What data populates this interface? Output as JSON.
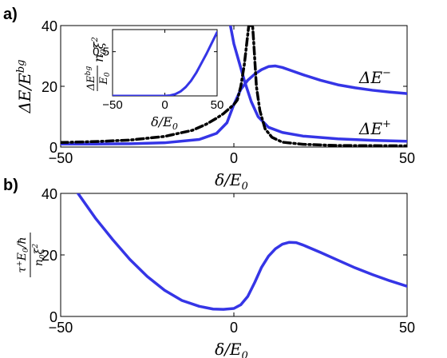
{
  "chart_data": [
    {
      "panel_label": "a)",
      "type": "line",
      "xlabel": "δ/E₀",
      "ylabel": "ΔE/E^bg",
      "xlim": [
        -50,
        50
      ],
      "ylim": [
        0,
        40
      ],
      "xticks": [
        "−50",
        "0",
        "50"
      ],
      "yticks": [
        "0",
        "20",
        "40"
      ],
      "series": [
        {
          "name": "ΔE⁻",
          "style": "solid",
          "color": "#3535E6",
          "points": [
            [
              -50,
              1.0
            ],
            [
              -40,
              1.0
            ],
            [
              -30,
              1.1
            ],
            [
              -20,
              1.4
            ],
            [
              -10,
              2.5
            ],
            [
              -5,
              4.5
            ],
            [
              -2,
              8
            ],
            [
              0,
              14
            ],
            [
              2,
              19
            ],
            [
              4,
              22
            ],
            [
              6,
              24
            ],
            [
              8,
              25.5
            ],
            [
              10,
              26.5
            ],
            [
              12,
              26.7
            ],
            [
              14,
              26.2
            ],
            [
              17,
              25
            ],
            [
              20,
              23.8
            ],
            [
              25,
              22
            ],
            [
              30,
              20.5
            ],
            [
              35,
              19.5
            ],
            [
              40,
              18.7
            ],
            [
              45,
              18.1
            ],
            [
              50,
              17.6
            ]
          ]
        },
        {
          "name": "ΔE⁺",
          "style": "solid",
          "color": "#3535E6",
          "points": [
            [
              -1,
              40
            ],
            [
              0,
              34
            ],
            [
              1,
              30
            ],
            [
              3,
              22
            ],
            [
              5,
              15
            ],
            [
              7,
              10
            ],
            [
              10,
              6.5
            ],
            [
              14,
              4.8
            ],
            [
              20,
              3.6
            ],
            [
              30,
              2.7
            ],
            [
              40,
              2.2
            ],
            [
              50,
              1.9
            ]
          ]
        },
        {
          "name": "",
          "style": "dash-dot",
          "color": "#000000",
          "points": [
            [
              -50,
              1.5
            ],
            [
              -40,
              1.8
            ],
            [
              -30,
              2.3
            ],
            [
              -20,
              3.5
            ],
            [
              -12,
              5.5
            ],
            [
              -8,
              7.5
            ],
            [
              -5,
              9.5
            ],
            [
              -3,
              11
            ],
            [
              -1,
              13
            ],
            [
              0,
              14
            ],
            [
              1,
              15.5
            ],
            [
              2,
              20
            ],
            [
              3,
              27
            ],
            [
              4,
              37
            ],
            [
              4.3,
              40
            ],
            [
              5.4,
              40
            ],
            [
              5.7,
              35
            ],
            [
              6.5,
              20
            ],
            [
              7.5,
              12
            ],
            [
              9,
              6
            ],
            [
              11,
              3.2
            ],
            [
              14,
              1.6
            ],
            [
              20,
              0.9
            ],
            [
              30,
              0.5
            ],
            [
              50,
              0.4
            ]
          ]
        }
      ],
      "inset": {
        "xlabel": "δ/E₀",
        "ylabel": "ΔE^bg/E₀ n₀ξ²",
        "xlim": [
          -50,
          50
        ],
        "ylim": [
          0,
          0.75
        ],
        "xticks": [
          "−50",
          "0",
          "50"
        ],
        "yticks": [
          "0.5"
        ],
        "series": [
          {
            "name": "",
            "style": "solid",
            "color": "#3535E6",
            "points": [
              [
                -50,
                0
              ],
              [
                0,
                0
              ],
              [
                5,
                0.005
              ],
              [
                10,
                0.02
              ],
              [
                15,
                0.05
              ],
              [
                20,
                0.1
              ],
              [
                25,
                0.17
              ],
              [
                30,
                0.26
              ],
              [
                35,
                0.37
              ],
              [
                40,
                0.48
              ],
              [
                45,
                0.6
              ],
              [
                50,
                0.72
              ]
            ]
          }
        ]
      }
    },
    {
      "panel_label": "b)",
      "type": "line",
      "xlabel": "δ/E₀",
      "ylabel": "τ⁺E₀/ħ / n₀ξ²",
      "xlim": [
        -50,
        50
      ],
      "ylim": [
        0,
        40
      ],
      "xticks": [
        "−50",
        "0",
        "50"
      ],
      "yticks": [
        "0",
        "20",
        "40"
      ],
      "series": [
        {
          "name": "",
          "style": "solid",
          "color": "#3535E6",
          "points": [
            [
              -45,
              40
            ],
            [
              -40,
              32
            ],
            [
              -35,
              25
            ],
            [
              -30,
              18.5
            ],
            [
              -25,
              13
            ],
            [
              -20,
              8.5
            ],
            [
              -15,
              5.2
            ],
            [
              -10,
              3.3
            ],
            [
              -6,
              2.4
            ],
            [
              -3,
              2.3
            ],
            [
              0,
              2.6
            ],
            [
              2,
              3.8
            ],
            [
              4,
              6.5
            ],
            [
              6,
              11
            ],
            [
              8,
              16
            ],
            [
              10,
              19.6
            ],
            [
              12,
              22
            ],
            [
              14,
              23.5
            ],
            [
              16,
              24.1
            ],
            [
              18,
              24
            ],
            [
              20,
              23.2
            ],
            [
              25,
              20.8
            ],
            [
              30,
              18.3
            ],
            [
              35,
              15.8
            ],
            [
              40,
              13.6
            ],
            [
              45,
              11.6
            ],
            [
              50,
              9.8
            ]
          ]
        }
      ]
    }
  ]
}
